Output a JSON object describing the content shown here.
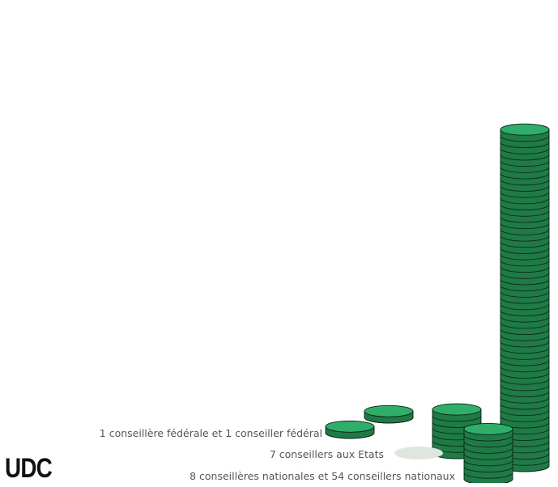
{
  "party": "UDC",
  "colors": {
    "coin": "#2fae69",
    "coin_edge": "#1f7a45",
    "outline": "#0a2415",
    "ghost": "#dfe5df"
  },
  "chart_data": {
    "type": "bar",
    "categories": [
      "1 conseillère fédérale et 1 conseiller fédéral",
      "7 conseillers aux Etats",
      "8 conseillères nationales et 54 conseillers nationaux"
    ],
    "series": [
      {
        "values": [
          1,
          0,
          8
        ]
      },
      {
        "values": [
          1,
          7,
          54
        ]
      }
    ]
  }
}
